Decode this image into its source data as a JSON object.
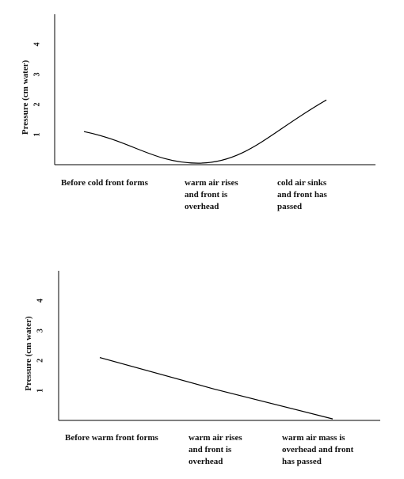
{
  "chart_data": [
    {
      "type": "line",
      "title": "",
      "ylabel": "Pressure (cm water)",
      "xlabel": "",
      "yticks": [
        "1",
        "2",
        "3",
        "4"
      ],
      "ylim": [
        0,
        5
      ],
      "categories": [
        [
          "Before cold front forms"
        ],
        [
          "warm air rises",
          "and front is",
          "overhead"
        ],
        [
          "cold air sinks",
          "and front has",
          "passed"
        ]
      ],
      "series": [
        {
          "values": [
            1.1,
            0.05,
            2.15
          ],
          "color": "#000000"
        }
      ]
    },
    {
      "type": "line",
      "title": "",
      "ylabel": "Pressure (cm water)",
      "xlabel": "",
      "yticks": [
        "1",
        "2",
        "3",
        "4"
      ],
      "ylim": [
        0,
        5
      ],
      "categories": [
        [
          "Before warm front forms"
        ],
        [
          "warm air rises",
          "and front is",
          "overhead"
        ],
        [
          "warm air mass is",
          "overhead and front",
          "has passed"
        ]
      ],
      "series": [
        {
          "values": [
            2.1,
            1.05,
            0.05
          ],
          "color": "#000000"
        }
      ]
    }
  ]
}
